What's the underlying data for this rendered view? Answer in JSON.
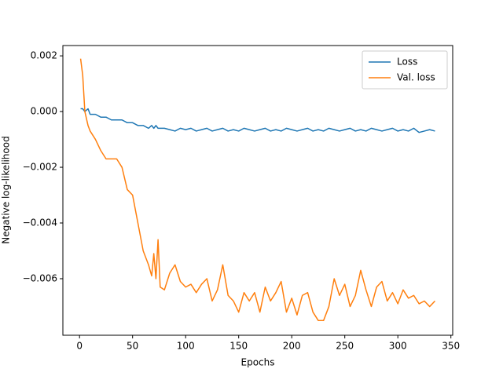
{
  "chart_data": {
    "type": "line",
    "xlabel": "Epochs",
    "ylabel": "Negative log-likelihood",
    "x": [
      1,
      3,
      5,
      8,
      10,
      15,
      20,
      25,
      30,
      35,
      40,
      45,
      50,
      55,
      60,
      65,
      68,
      70,
      72,
      74,
      76,
      80,
      85,
      90,
      95,
      100,
      105,
      110,
      115,
      120,
      125,
      130,
      135,
      140,
      145,
      150,
      155,
      160,
      165,
      170,
      175,
      180,
      185,
      190,
      195,
      200,
      205,
      210,
      215,
      220,
      225,
      230,
      235,
      240,
      245,
      250,
      255,
      260,
      265,
      270,
      275,
      280,
      285,
      290,
      295,
      300,
      305,
      310,
      315,
      320,
      325,
      330,
      335
    ],
    "series": [
      {
        "name": "Loss",
        "color": "#1f77b4",
        "values": [
          0.0001,
          0.0001,
          0.0,
          0.0001,
          -0.0001,
          -0.0001,
          -0.0002,
          -0.0002,
          -0.0003,
          -0.0003,
          -0.0003,
          -0.0004,
          -0.0004,
          -0.0005,
          -0.0005,
          -0.0006,
          -0.0005,
          -0.0006,
          -0.0005,
          -0.0006,
          -0.0006,
          -0.0006,
          -0.00065,
          -0.0007,
          -0.0006,
          -0.00065,
          -0.0006,
          -0.0007,
          -0.00065,
          -0.0006,
          -0.0007,
          -0.00065,
          -0.0006,
          -0.0007,
          -0.00065,
          -0.0007,
          -0.0006,
          -0.00065,
          -0.0007,
          -0.00065,
          -0.0006,
          -0.0007,
          -0.00065,
          -0.0007,
          -0.0006,
          -0.00065,
          -0.0007,
          -0.00065,
          -0.0006,
          -0.0007,
          -0.00065,
          -0.0007,
          -0.0006,
          -0.00065,
          -0.0007,
          -0.00065,
          -0.0006,
          -0.0007,
          -0.00065,
          -0.0007,
          -0.0006,
          -0.00065,
          -0.0007,
          -0.00065,
          -0.0006,
          -0.0007,
          -0.00065,
          -0.0007,
          -0.0006,
          -0.00075,
          -0.0007,
          -0.00065,
          -0.0007
        ]
      },
      {
        "name": "Val. loss",
        "color": "#ff7f0e",
        "values": [
          0.0019,
          0.0013,
          0.0,
          -0.0005,
          -0.0007,
          -0.001,
          -0.0014,
          -0.0017,
          -0.0017,
          -0.0017,
          -0.002,
          -0.0028,
          -0.003,
          -0.004,
          -0.005,
          -0.0055,
          -0.0059,
          -0.0051,
          -0.006,
          -0.0046,
          -0.0063,
          -0.0064,
          -0.0058,
          -0.0055,
          -0.0061,
          -0.0063,
          -0.0062,
          -0.0065,
          -0.0062,
          -0.006,
          -0.0068,
          -0.0064,
          -0.0055,
          -0.0066,
          -0.0068,
          -0.0072,
          -0.0065,
          -0.0068,
          -0.0065,
          -0.0072,
          -0.0063,
          -0.0068,
          -0.0065,
          -0.0061,
          -0.0072,
          -0.0067,
          -0.0073,
          -0.0066,
          -0.0065,
          -0.0072,
          -0.0075,
          -0.0075,
          -0.007,
          -0.006,
          -0.0066,
          -0.0062,
          -0.007,
          -0.0066,
          -0.0057,
          -0.0064,
          -0.007,
          -0.0063,
          -0.0061,
          -0.0068,
          -0.0065,
          -0.0069,
          -0.0064,
          -0.0067,
          -0.0066,
          -0.0069,
          -0.0068,
          -0.007,
          -0.0068
        ]
      }
    ],
    "xlim": [
      -15.7,
      351.7
    ],
    "xticks": [
      0,
      50,
      100,
      150,
      200,
      250,
      300,
      350
    ],
    "ylim": [
      -0.00803,
      0.00237
    ],
    "yticks": [
      {
        "value": -0.006,
        "label": "−0.006"
      },
      {
        "value": -0.004,
        "label": "−0.004"
      },
      {
        "value": -0.002,
        "label": "−0.002"
      },
      {
        "value": 0,
        "label": "0.000"
      },
      {
        "value": 0.002,
        "label": "0.002"
      }
    ],
    "legend": "upper right",
    "grid": false
  }
}
